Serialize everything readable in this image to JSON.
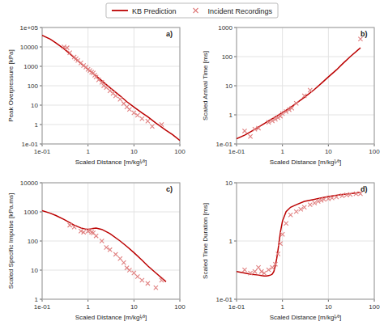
{
  "chart_data": [
    {
      "type": "line",
      "log": true,
      "grid": true,
      "legend": "top",
      "xlabel": "Scaled Distance [m/kg¹⁄³]",
      "ylabel": "Peak Overpressure [kPa]",
      "annotations": [
        "a)"
      ],
      "xlim": [
        0.1,
        100
      ],
      "ylim": [
        0.1,
        100000
      ],
      "xticks": [
        {
          "value": 0.1,
          "label": "1e-01"
        },
        1,
        10,
        100
      ],
      "yticks": [
        {
          "value": 0.1,
          "label": "1e-01"
        },
        1,
        10,
        100,
        1000,
        10000,
        {
          "value": 100000,
          "label": "1e+05"
        }
      ],
      "series": [
        {
          "name": "KB Prediction",
          "type": "line",
          "color": "#bb0000",
          "x": [
            0.1,
            0.15,
            0.2,
            0.3,
            0.4,
            0.5,
            0.7,
            1.0,
            1.5,
            2.0,
            3.0,
            5.0,
            7.0,
            10.0,
            15.0,
            20.0,
            30.0,
            50.0,
            70.0,
            100.0
          ],
          "values": [
            40000,
            25000,
            16000,
            8000,
            4500,
            2800,
            1400,
            700,
            320,
            180,
            80,
            30,
            15,
            8,
            4,
            2.5,
            1.2,
            0.5,
            0.3,
            0.15
          ]
        },
        {
          "name": "Incident Recordings",
          "type": "scatter",
          "marker": "x",
          "color": "#e08080",
          "x": [
            0.3,
            0.35,
            0.4,
            0.5,
            0.55,
            0.6,
            0.7,
            0.8,
            0.9,
            1.0,
            1.1,
            1.2,
            1.3,
            1.4,
            1.5,
            1.7,
            2.0,
            2.2,
            2.5,
            3.0,
            3.5,
            4.0,
            5.0,
            6.0,
            7.0,
            8.0,
            10.0,
            12.0,
            15.0,
            20.0,
            25.0,
            40.0
          ],
          "values": [
            10000,
            9000,
            5000,
            3000,
            2500,
            2000,
            1500,
            1100,
            900,
            700,
            600,
            500,
            450,
            350,
            280,
            200,
            150,
            100,
            80,
            55,
            40,
            30,
            20,
            12,
            8,
            6,
            4,
            3,
            2,
            1.5,
            0.8,
            1.0
          ]
        }
      ]
    },
    {
      "type": "line",
      "log": true,
      "grid": true,
      "xlabel": "Scaled Distance [m/kg¹⁄³]",
      "ylabel": "Scaled Arrival Time [ms]",
      "annotations": [
        "b)"
      ],
      "xlim": [
        0.1,
        100
      ],
      "ylim": [
        0.1,
        1000
      ],
      "xticks": [
        {
          "value": 0.1,
          "label": "1e-01"
        },
        1,
        10,
        100
      ],
      "yticks": [
        {
          "value": 0.1,
          "label": "1e-01"
        },
        1,
        10,
        100,
        1000
      ],
      "series": [
        {
          "type": "line",
          "color": "#bb0000",
          "x": [
            0.1,
            0.15,
            0.2,
            0.3,
            0.4,
            0.5,
            0.7,
            1.0,
            1.5,
            2.0,
            3.0,
            5.0,
            7.0,
            10.0,
            15.0,
            20.0,
            30.0,
            50.0
          ],
          "values": [
            0.15,
            0.2,
            0.26,
            0.38,
            0.5,
            0.62,
            0.85,
            1.2,
            1.8,
            2.5,
            4.0,
            7.5,
            12,
            20,
            35,
            55,
            100,
            200
          ]
        },
        {
          "type": "scatter",
          "marker": "x",
          "color": "#e08080",
          "x": [
            0.15,
            0.2,
            0.25,
            0.3,
            0.5,
            0.6,
            0.7,
            0.8,
            0.9,
            1.0,
            1.2,
            1.4,
            1.6,
            2.0,
            3.0,
            4.0,
            50.0
          ],
          "values": [
            0.28,
            0.18,
            0.32,
            0.35,
            0.55,
            0.62,
            0.7,
            0.8,
            0.9,
            1.1,
            1.3,
            1.5,
            1.7,
            2.5,
            4.5,
            7.0,
            400
          ]
        }
      ]
    },
    {
      "type": "line",
      "log": true,
      "grid": true,
      "xlabel": "Scaled Distance [m/kg¹⁄³]",
      "ylabel": "Scaled Specific Impulse [kPa.ms]",
      "annotations": [
        "c)"
      ],
      "xlim": [
        0.1,
        100
      ],
      "ylim": [
        1,
        10000
      ],
      "xticks": [
        {
          "value": 0.1,
          "label": "1e-01"
        },
        1,
        10,
        100
      ],
      "yticks": [
        1,
        10,
        100,
        1000,
        10000
      ],
      "series": [
        {
          "type": "line",
          "color": "#bb0000",
          "x": [
            0.1,
            0.15,
            0.2,
            0.3,
            0.5,
            0.7,
            0.9,
            1.0,
            1.1,
            1.2,
            1.5,
            2.0,
            3.0,
            5.0,
            7.0,
            10.0,
            15.0,
            20.0,
            30.0,
            50.0
          ],
          "values": [
            1100,
            900,
            750,
            550,
            350,
            280,
            255,
            250,
            255,
            265,
            280,
            250,
            180,
            100,
            65,
            40,
            22,
            14,
            8,
            4
          ]
        },
        {
          "type": "scatter",
          "marker": "x",
          "color": "#e08080",
          "x": [
            0.4,
            0.5,
            0.7,
            0.8,
            1.0,
            1.1,
            1.2,
            1.3,
            1.5,
            2.0,
            2.5,
            3.0,
            4.0,
            5.0,
            6.0,
            7.0,
            8.0,
            10.0,
            12.0,
            15.0,
            20.0,
            30.0,
            40.0
          ],
          "values": [
            350,
            300,
            220,
            200,
            220,
            230,
            200,
            190,
            150,
            100,
            60,
            50,
            35,
            25,
            18,
            12,
            10,
            8,
            6,
            4.5,
            3.5,
            2.5,
            4.5
          ]
        }
      ]
    },
    {
      "type": "line",
      "log": true,
      "grid": true,
      "xlabel": "Scaled Distance [m/kg¹⁄³]",
      "ylabel": "Scaled Time Duration [ms]",
      "annotations": [
        "d)"
      ],
      "xlim": [
        0.1,
        100
      ],
      "ylim": [
        0.1,
        10
      ],
      "xticks": [
        {
          "value": 0.1,
          "label": "1e-01"
        },
        1,
        10,
        100
      ],
      "yticks": [
        {
          "value": 0.1,
          "label": "1e-01"
        },
        1,
        10
      ],
      "series": [
        {
          "type": "line",
          "color": "#bb0000",
          "x": [
            0.1,
            0.2,
            0.3,
            0.35,
            0.4,
            0.45,
            0.5,
            0.55,
            0.6,
            0.65,
            0.7,
            0.75,
            0.8,
            0.85,
            0.9,
            1.0,
            1.2,
            1.5,
            2.0,
            3.0,
            5.0,
            7.0,
            10.0,
            15.0,
            20.0,
            30.0,
            50.0
          ],
          "values": [
            0.3,
            0.27,
            0.26,
            0.255,
            0.25,
            0.25,
            0.255,
            0.26,
            0.27,
            0.3,
            0.38,
            0.5,
            0.7,
            1.0,
            1.4,
            2.2,
            3.2,
            3.8,
            4.2,
            4.8,
            5.2,
            5.5,
            5.8,
            6.1,
            6.3,
            6.5,
            6.8
          ]
        },
        {
          "type": "scatter",
          "marker": "x",
          "color": "#e08080",
          "x": [
            0.15,
            0.2,
            0.25,
            0.3,
            0.35,
            0.4,
            0.5,
            0.6,
            0.7,
            0.8,
            0.9,
            1.0,
            1.2,
            1.5,
            2.0,
            2.5,
            3.0,
            4.0,
            5.0,
            6.0,
            7.0,
            8.0,
            10.0,
            12.0,
            15.0,
            20.0,
            25.0,
            30.0,
            40.0,
            50.0
          ],
          "values": [
            0.32,
            0.28,
            0.3,
            0.35,
            0.3,
            0.28,
            0.32,
            0.35,
            0.4,
            0.6,
            0.9,
            1.3,
            2.0,
            2.8,
            3.2,
            3.5,
            3.8,
            4.2,
            4.5,
            4.8,
            5.0,
            5.2,
            5.3,
            5.5,
            5.7,
            6.0,
            6.2,
            6.3,
            6.5,
            6.5
          ]
        }
      ]
    }
  ]
}
